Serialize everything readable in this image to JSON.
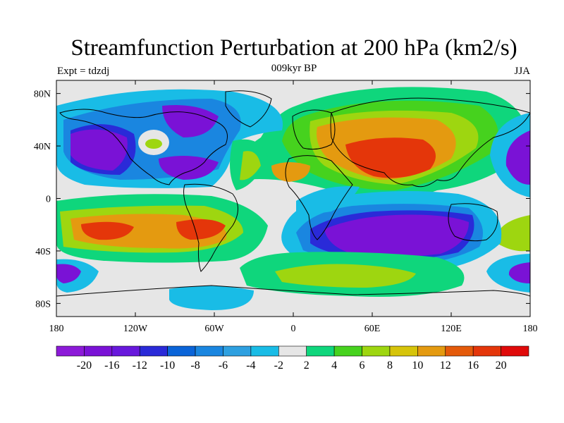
{
  "title": "Streamfunction Perturbation at 200 hPa (km2/s)",
  "subtitle": "009kyr BP",
  "left_label": "Expt = tdzdj",
  "right_label": "JJA",
  "x_ticks": [
    "180",
    "120W",
    "60W",
    "0",
    "60E",
    "120E",
    "180"
  ],
  "y_ticks": [
    "80N",
    "40N",
    "0",
    "40S",
    "80S"
  ],
  "colorbar": {
    "colors": [
      "#8c1ad8",
      "#7a12d6",
      "#6818dc",
      "#2a2ad8",
      "#0a64d8",
      "#1a86e0",
      "#2ea0e0",
      "#19bce6",
      "#e6e6e6",
      "#0fd67c",
      "#46d21e",
      "#9ed610",
      "#d6c40a",
      "#e49a10",
      "#e45a0a",
      "#e4360a",
      "#e00a0a"
    ],
    "labels": [
      "-20",
      "-16",
      "-12",
      "-10",
      "-8",
      "-6",
      "-4",
      "-2",
      "2",
      "4",
      "6",
      "8",
      "10",
      "12",
      "16",
      "20"
    ]
  },
  "field_colors": {
    "background": "#e6e6e6",
    "neg1": "#19bce6",
    "neg2": "#1a86e0",
    "neg3": "#2a2ad8",
    "neg4": "#7a12d6",
    "pos1": "#0fd67c",
    "pos2": "#46d21e",
    "pos3": "#9ed610",
    "pos4": "#e49a10",
    "pos5": "#e4360a"
  }
}
